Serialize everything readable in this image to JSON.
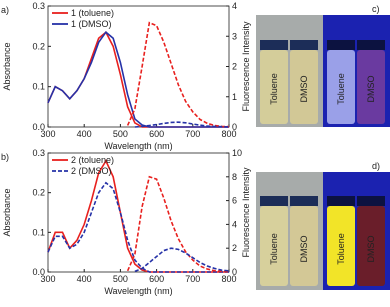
{
  "chart_data": [
    {
      "type": "line",
      "panel_label": "a)",
      "x_label": "Wavelength (nm)",
      "y_label": "Absorbance",
      "y2_label": "Fluorescence Intensity",
      "x": [
        300,
        320,
        340,
        360,
        380,
        400,
        420,
        440,
        460,
        480,
        500,
        520,
        540,
        560,
        580,
        600,
        620,
        640,
        660,
        680,
        700,
        720,
        740,
        760,
        780,
        800
      ],
      "xlim": [
        300,
        800
      ],
      "xticks": [
        300,
        400,
        500,
        600,
        700,
        800
      ],
      "ylim": [
        0,
        0.3
      ],
      "yticks": [
        {
          "value": 0,
          "label": "0.0"
        },
        {
          "value": 0.1,
          "label": "0.1"
        },
        {
          "value": 0.2,
          "label": "0.2"
        },
        {
          "value": 0.3,
          "label": "0.3"
        }
      ],
      "y2lim": [
        0,
        4
      ],
      "y2ticks": [
        0,
        1,
        2,
        3,
        4
      ],
      "series": [
        {
          "name": "1 (toluene)",
          "color": "#e8201e",
          "dash": false,
          "values": [
            0.06,
            0.1,
            0.09,
            0.07,
            0.09,
            0.12,
            0.17,
            0.22,
            0.235,
            0.2,
            0.13,
            0.05,
            0.01,
            0,
            0,
            0,
            0,
            0,
            0,
            0,
            0,
            0,
            0,
            0,
            0,
            0
          ]
        },
        {
          "name": "1 (DMSO)",
          "color": "#2632a8",
          "dash": false,
          "values": [
            0.06,
            0.1,
            0.09,
            0.07,
            0.09,
            0.12,
            0.16,
            0.21,
            0.235,
            0.22,
            0.16,
            0.08,
            0.02,
            0.005,
            0,
            0,
            0,
            0,
            0,
            0,
            0,
            0,
            0,
            0,
            0,
            0
          ]
        },
        {
          "color": "#e8201e",
          "dash": true,
          "axis": "y2",
          "values": [
            null,
            null,
            null,
            null,
            null,
            null,
            null,
            null,
            null,
            null,
            null,
            0.05,
            0.6,
            2.0,
            3.45,
            3.35,
            2.8,
            2.1,
            1.4,
            0.85,
            0.5,
            0.25,
            0.12,
            0.05,
            0.02,
            0.01
          ]
        },
        {
          "color": "#2632a8",
          "dash": true,
          "axis": "y2",
          "values": [
            null,
            null,
            null,
            null,
            null,
            null,
            null,
            null,
            null,
            null,
            null,
            null,
            0,
            0.02,
            0.05,
            0.08,
            0.12,
            0.15,
            0.16,
            0.14,
            0.1,
            0.06,
            0.03,
            0.02,
            0.01,
            0
          ]
        }
      ]
    },
    {
      "type": "line",
      "panel_label": "b)",
      "x_label": "Wavelength (nm)",
      "y_label": "Absorbance",
      "y2_label": "Fluorescence Intensity",
      "x": [
        300,
        320,
        340,
        360,
        380,
        400,
        420,
        440,
        460,
        480,
        500,
        520,
        540,
        560,
        580,
        600,
        620,
        640,
        660,
        680,
        700,
        720,
        740,
        760,
        780,
        800
      ],
      "xlim": [
        300,
        800
      ],
      "xticks": [
        300,
        400,
        500,
        600,
        700,
        800
      ],
      "ylim": [
        0,
        0.3
      ],
      "yticks": [
        {
          "value": 0,
          "label": "0.0"
        },
        {
          "value": 0.1,
          "label": "0.1"
        },
        {
          "value": 0.2,
          "label": "0.2"
        },
        {
          "value": 0.3,
          "label": "0.3"
        }
      ],
      "y2lim": [
        0,
        10
      ],
      "y2ticks": [
        0,
        2,
        4,
        6,
        8,
        10
      ],
      "series": [
        {
          "name": "2 (toluene)",
          "color": "#e8201e",
          "dash": false,
          "values": [
            0.05,
            0.1,
            0.1,
            0.06,
            0.08,
            0.12,
            0.18,
            0.25,
            0.28,
            0.24,
            0.15,
            0.06,
            0.02,
            0.005,
            0,
            0,
            0,
            0,
            0,
            0,
            0,
            0,
            0,
            0,
            0,
            0
          ]
        },
        {
          "name": "2 (DMSO)",
          "color": "#2632a8",
          "dash": true,
          "values": [
            0.05,
            0.09,
            0.09,
            0.06,
            0.07,
            0.1,
            0.15,
            0.2,
            0.225,
            0.21,
            0.15,
            0.08,
            0.03,
            0.01,
            0,
            0,
            0,
            0,
            0,
            0,
            0,
            0,
            0,
            0,
            0,
            0
          ]
        },
        {
          "color": "#e8201e",
          "dash": true,
          "axis": "y2",
          "values": [
            null,
            null,
            null,
            null,
            null,
            null,
            null,
            null,
            null,
            null,
            null,
            0.1,
            1.5,
            5.5,
            8.0,
            7.8,
            6.2,
            4.3,
            2.8,
            1.7,
            1.0,
            0.5,
            0.25,
            0.1,
            0.05,
            0.02
          ]
        },
        {
          "color": "#2632a8",
          "dash": true,
          "axis": "y2",
          "values": [
            null,
            null,
            null,
            null,
            null,
            null,
            null,
            null,
            null,
            null,
            null,
            null,
            0.05,
            0.3,
            0.8,
            1.3,
            1.8,
            2.0,
            1.9,
            1.6,
            1.2,
            0.8,
            0.5,
            0.3,
            0.15,
            0.1
          ]
        }
      ]
    }
  ],
  "photos": [
    {
      "label": "c)",
      "vials": [
        "Toluene",
        "DMSO",
        "Toluene",
        "DMSO"
      ]
    },
    {
      "label": "d)",
      "vials": [
        "Toluene",
        "DMSO",
        "Toluene",
        "DMSO"
      ]
    }
  ]
}
